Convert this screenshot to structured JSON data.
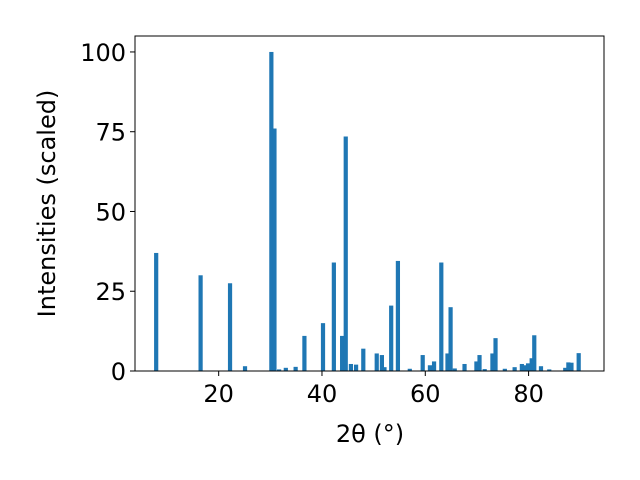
{
  "chart_data": {
    "type": "bar",
    "xlabel": "2θ (°)",
    "ylabel": "Intensities (scaled)",
    "xlim": [
      3.8,
      94.6
    ],
    "ylim": [
      0,
      105
    ],
    "xticks": [
      20,
      40,
      60,
      80
    ],
    "yticks": [
      0,
      25,
      50,
      75,
      100
    ],
    "bar_color": "#1f77b4",
    "grid": false,
    "x": [
      7.9,
      16.5,
      22.2,
      25.1,
      30.2,
      30.8,
      31.7,
      33.0,
      34.9,
      36.6,
      40.2,
      42.3,
      43.9,
      44.6,
      45.6,
      46.6,
      48.0,
      50.6,
      51.6,
      52.1,
      53.4,
      54.7,
      57.0,
      59.5,
      60.9,
      61.7,
      63.1,
      64.3,
      64.9,
      65.7,
      67.6,
      69.9,
      70.5,
      71.5,
      73.0,
      73.6,
      75.4,
      77.3,
      78.7,
      79.2,
      79.9,
      80.6,
      81.1,
      82.4,
      84.0,
      87.1,
      87.7,
      88.3,
      89.7
    ],
    "values": [
      37,
      30,
      27.5,
      1.5,
      100,
      76,
      0.5,
      1,
      1.3,
      11,
      15,
      34,
      11,
      73.5,
      2.2,
      2,
      7,
      5.5,
      5,
      1.2,
      20.5,
      34.5,
      0.7,
      5,
      1.8,
      3,
      34,
      5.5,
      20,
      0.8,
      2.2,
      3,
      5,
      0.6,
      5.5,
      10.3,
      0.7,
      1.2,
      2.2,
      1.8,
      2.4,
      4,
      11.2,
      1.5,
      0.5,
      1,
      2.7,
      2.6,
      5.6
    ]
  }
}
